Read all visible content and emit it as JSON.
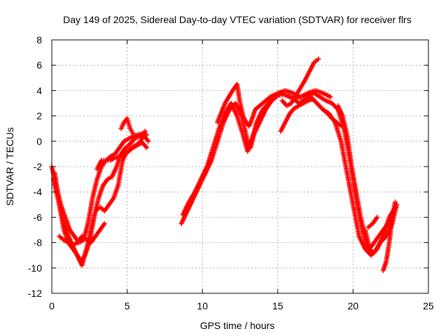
{
  "chart_data": {
    "type": "scatter",
    "title": "Day 149 of 2025, Sidereal Day-to-day VTEC variation (SDTVAR) for receiver flrs",
    "xlabel": "GPS time / hours",
    "ylabel": "SDTVAR / TECUs",
    "xlim": [
      0,
      25
    ],
    "ylim": [
      -12,
      8
    ],
    "xticks": [
      "0",
      "5",
      "10",
      "15",
      "20",
      "25"
    ],
    "yticks": [
      "-12",
      "-10",
      "-8",
      "-6",
      "-4",
      "-2",
      "0",
      "2",
      "4",
      "6",
      "8"
    ],
    "grid": true,
    "marker": "+",
    "color": "#ff0000",
    "series": [
      {
        "x": [
          0.0,
          0.3,
          0.6,
          0.9,
          1.2,
          1.5,
          1.8,
          2.1,
          2.4,
          2.7,
          3.0,
          3.3,
          3.6,
          3.9,
          4.2,
          4.5,
          4.8,
          5.1,
          5.4,
          5.7,
          6.0,
          6.3
        ],
        "y": [
          -2.0,
          -3.5,
          -5.0,
          -6.0,
          -7.0,
          -7.5,
          -8.0,
          -7.8,
          -6.5,
          -4.5,
          -3.0,
          -2.0,
          -1.5,
          -1.2,
          -1.0,
          -0.5,
          0.0,
          0.2,
          0.4,
          0.5,
          0.6,
          0.5
        ]
      },
      {
        "x": [
          0.1,
          0.4,
          0.7,
          1.0,
          1.3,
          1.6,
          1.9,
          2.2,
          2.5,
          2.8,
          3.1,
          3.4,
          3.7,
          4.0,
          4.3,
          4.6,
          4.9,
          5.2,
          5.5,
          5.8,
          6.1,
          6.4
        ],
        "y": [
          -3.0,
          -4.5,
          -6.0,
          -7.2,
          -8.0,
          -8.8,
          -9.5,
          -9.0,
          -8.0,
          -6.0,
          -4.5,
          -3.5,
          -3.0,
          -2.8,
          -2.0,
          -1.0,
          -0.5,
          -0.2,
          0.2,
          0.4,
          0.5,
          0.0
        ]
      },
      {
        "x": [
          0.2,
          0.5,
          0.8,
          1.1,
          1.4,
          1.7,
          2.0,
          2.3,
          2.6,
          2.9,
          3.2,
          3.5,
          3.8,
          4.1,
          4.4,
          4.7,
          5.0,
          5.3,
          5.6,
          5.9,
          6.2
        ],
        "y": [
          -2.5,
          -5.0,
          -7.0,
          -8.0,
          -8.5,
          -9.0,
          -9.8,
          -8.5,
          -7.0,
          -5.5,
          -5.2,
          -5.5,
          -5.0,
          -4.5,
          -3.5,
          -1.5,
          -0.8,
          -0.5,
          -0.3,
          0.0,
          0.8
        ]
      },
      {
        "x": [
          0.5,
          0.8,
          1.1,
          1.4,
          1.7,
          2.0,
          2.3,
          2.6,
          2.9,
          3.2,
          3.5
        ],
        "y": [
          -7.5,
          -7.8,
          -8.0,
          -8.2,
          -8.0,
          -7.5,
          -7.8,
          -8.0,
          -7.5,
          -7.0,
          -6.5
        ]
      },
      {
        "x": [
          3.0,
          3.3,
          3.6,
          3.9,
          4.2,
          4.5,
          4.8,
          5.1,
          5.4,
          5.7,
          6.0,
          6.3
        ],
        "y": [
          -2.2,
          -1.5,
          -1.5,
          -1.5,
          -1.3,
          -1.2,
          -1.0,
          -0.8,
          -0.5,
          -0.3,
          -0.1,
          -0.5
        ]
      },
      {
        "x": [
          4.6,
          4.8,
          5.0,
          5.2,
          5.4
        ],
        "y": [
          1.0,
          1.5,
          1.8,
          1.0,
          0.6
        ]
      },
      {
        "x": [
          8.6,
          9.0,
          9.4,
          9.8,
          10.2,
          10.6,
          11.0,
          11.4,
          11.8,
          12.2,
          12.6,
          12.8,
          13.0,
          13.2,
          13.4,
          13.8,
          14.2,
          14.6,
          15.0,
          15.4,
          15.8,
          16.2,
          16.6,
          17.0,
          17.4,
          17.8,
          18.2,
          18.6,
          19.0,
          19.4,
          19.8,
          20.2,
          20.6,
          21.0,
          21.4,
          21.8,
          22.2,
          22.6,
          22.9
        ],
        "y": [
          -6.5,
          -5.5,
          -4.5,
          -3.5,
          -2.5,
          -1.5,
          0.0,
          1.5,
          2.5,
          3.0,
          2.0,
          1.0,
          0.0,
          -0.5,
          0.5,
          1.5,
          2.5,
          3.2,
          3.6,
          3.7,
          3.5,
          3.4,
          3.5,
          3.6,
          3.8,
          3.5,
          3.2,
          3.0,
          2.5,
          1.0,
          -1.5,
          -4.5,
          -7.0,
          -8.5,
          -8.8,
          -8.0,
          -7.5,
          -6.5,
          -5.0
        ]
      },
      {
        "x": [
          8.7,
          9.1,
          9.5,
          9.9,
          10.3,
          10.7,
          11.1,
          11.5,
          11.9,
          12.3,
          12.7,
          13.0,
          13.3,
          13.6,
          14.0,
          14.4,
          14.8,
          15.2,
          15.6,
          16.0,
          16.4,
          16.8,
          17.2,
          17.6,
          18.0,
          18.4,
          18.8,
          19.2,
          19.6,
          20.0,
          20.4,
          20.8,
          21.2,
          21.6,
          22.0,
          22.4,
          22.8
        ],
        "y": [
          -5.8,
          -4.8,
          -4.0,
          -3.0,
          -2.0,
          -0.5,
          1.0,
          2.2,
          3.0,
          2.0,
          0.5,
          -0.8,
          0.2,
          1.5,
          2.5,
          3.0,
          3.5,
          3.8,
          3.6,
          3.4,
          3.0,
          3.3,
          3.5,
          3.0,
          2.5,
          2.2,
          1.5,
          0.0,
          -2.5,
          -5.0,
          -7.5,
          -8.5,
          -9.0,
          -8.5,
          -7.5,
          -6.0,
          -5.2
        ]
      },
      {
        "x": [
          11.0,
          11.5,
          12.0,
          12.3,
          12.5,
          12.7,
          12.9,
          13.1,
          13.3,
          13.5,
          14.0,
          14.5,
          15.0,
          15.5,
          16.0,
          16.5,
          17.0,
          17.5,
          18.0,
          18.5
        ],
        "y": [
          1.5,
          3.0,
          4.0,
          4.5,
          3.0,
          2.0,
          1.5,
          1.2,
          1.8,
          2.5,
          3.0,
          3.5,
          3.8,
          4.0,
          3.8,
          3.5,
          3.8,
          4.0,
          3.8,
          3.5
        ]
      },
      {
        "x": [
          15.3,
          15.6,
          15.9,
          16.2,
          16.5,
          16.8,
          17.1,
          17.4,
          17.7
        ],
        "y": [
          3.2,
          2.8,
          3.0,
          3.6,
          4.2,
          4.8,
          5.5,
          6.2,
          6.5
        ]
      },
      {
        "x": [
          15.2,
          15.5,
          15.8,
          16.1,
          16.4,
          16.7,
          17.0,
          17.3
        ],
        "y": [
          0.8,
          1.5,
          2.2,
          2.6,
          2.8,
          3.0,
          3.2,
          3.3
        ]
      },
      {
        "x": [
          18.0,
          18.3,
          18.6,
          18.9,
          19.2
        ],
        "y": [
          2.5,
          2.2,
          1.8,
          1.5,
          1.2
        ]
      },
      {
        "x": [
          19.0,
          19.3,
          19.6,
          19.9,
          20.2,
          20.5,
          20.8
        ],
        "y": [
          2.8,
          2.0,
          0.5,
          -2.0,
          -4.0,
          -6.0,
          -7.5
        ]
      },
      {
        "x": [
          20.8,
          21.1,
          21.4,
          21.7,
          22.0,
          22.3,
          22.6
        ],
        "y": [
          -7.0,
          -8.5,
          -8.0,
          -7.5,
          -7.0,
          -6.5,
          -6.0
        ]
      },
      {
        "x": [
          21.0,
          21.3,
          21.6
        ],
        "y": [
          -6.8,
          -6.5,
          -6.0
        ]
      },
      {
        "x": [
          22.0,
          22.2,
          22.4,
          22.6,
          22.8
        ],
        "y": [
          -10.2,
          -9.5,
          -8.0,
          -6.0,
          -4.8
        ]
      }
    ]
  }
}
